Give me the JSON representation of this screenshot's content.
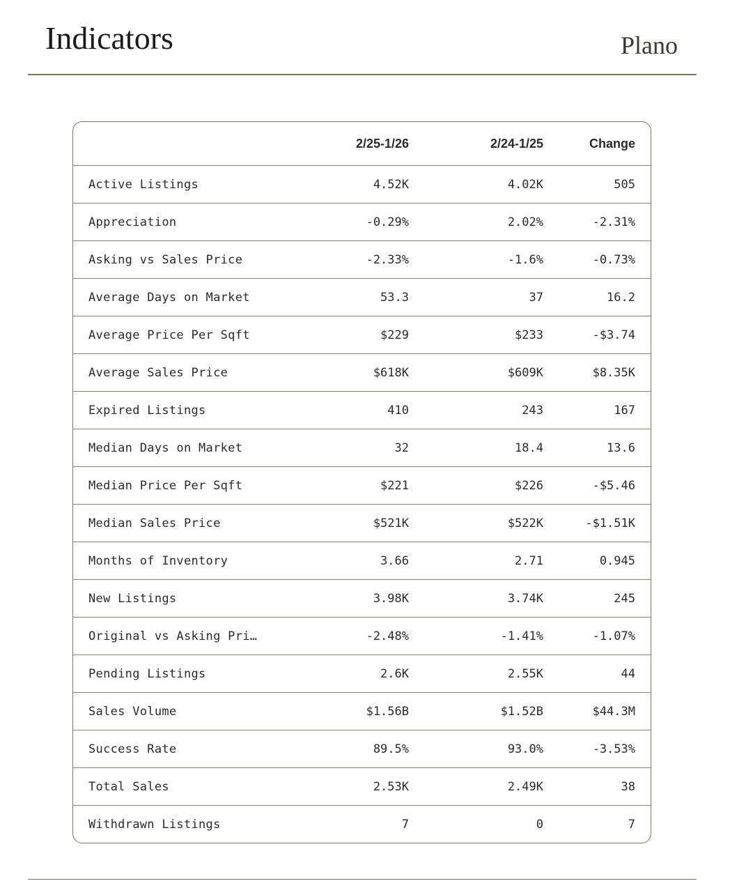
{
  "header": {
    "title": "Indicators",
    "location": "Plano"
  },
  "table": {
    "columns": [
      "",
      "2/25-1/26",
      "2/24-1/25",
      "Change"
    ],
    "rows": [
      [
        "Active Listings",
        "4.52K",
        "4.02K",
        "505"
      ],
      [
        "Appreciation",
        "-0.29%",
        "2.02%",
        "-2.31%"
      ],
      [
        "Asking vs Sales Price",
        "-2.33%",
        "-1.6%",
        "-0.73%"
      ],
      [
        "Average Days on Market",
        "53.3",
        "37",
        "16.2"
      ],
      [
        "Average Price Per Sqft",
        "$229",
        "$233",
        "-$3.74"
      ],
      [
        "Average Sales Price",
        "$618K",
        "$609K",
        "$8.35K"
      ],
      [
        "Expired Listings",
        "410",
        "243",
        "167"
      ],
      [
        "Median Days on Market",
        "32",
        "18.4",
        "13.6"
      ],
      [
        "Median Price Per Sqft",
        "$221",
        "$226",
        "-$5.46"
      ],
      [
        "Median Sales Price",
        "$521K",
        "$522K",
        "-$1.51K"
      ],
      [
        "Months of Inventory",
        "3.66",
        "2.71",
        "0.945"
      ],
      [
        "New Listings",
        "3.98K",
        "3.74K",
        "245"
      ],
      [
        "Original vs Asking Pri…",
        "-2.48%",
        "-1.41%",
        "-1.07%"
      ],
      [
        "Pending Listings",
        "2.6K",
        "2.55K",
        "44"
      ],
      [
        "Sales Volume",
        "$1.56B",
        "$1.52B",
        "$44.3M"
      ],
      [
        "Success Rate",
        "89.5%",
        "93.0%",
        "-3.53%"
      ],
      [
        "Total Sales",
        "2.53K",
        "2.49K",
        "38"
      ],
      [
        "Withdrawn Listings",
        "7",
        "0",
        "7"
      ]
    ]
  }
}
